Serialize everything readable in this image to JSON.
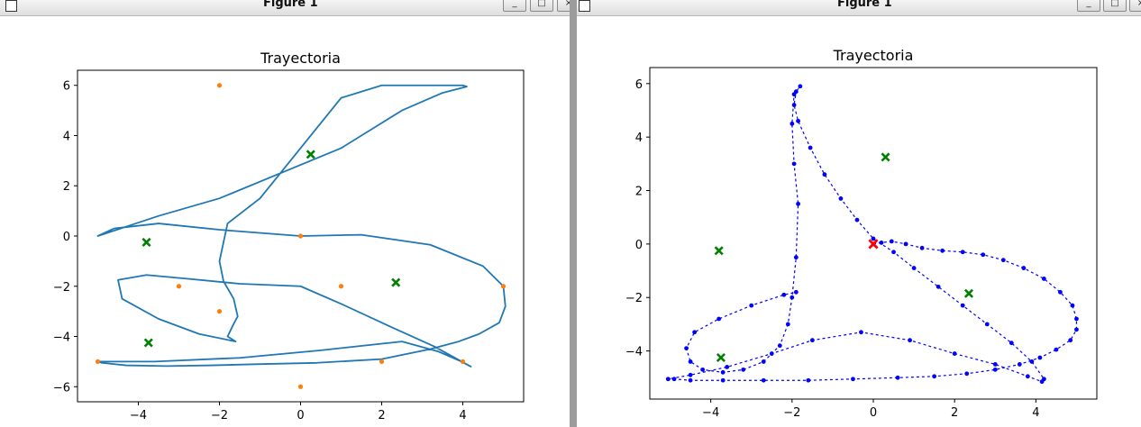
{
  "windows": [
    {
      "title": "Figure 1",
      "buttons": {
        "minimize": "_",
        "maximize": "□",
        "close": "×"
      }
    },
    {
      "title": "Figure 1",
      "buttons": {
        "minimize": "_",
        "maximize": "□",
        "close": "×"
      }
    }
  ],
  "chart_data": [
    {
      "type": "line",
      "title": "Trayectoria",
      "xlabel": "",
      "ylabel": "",
      "xlim": [
        -5.5,
        5.5
      ],
      "ylim": [
        -6.6,
        6.6
      ],
      "xticks": [
        -4,
        -2,
        0,
        2,
        4
      ],
      "yticks": [
        -6,
        -4,
        -2,
        0,
        2,
        4,
        6
      ],
      "grid": false,
      "colors": {
        "path": "#1f77b4",
        "waypoints": "#ff7f0e",
        "obstacles": "#008000"
      },
      "series": [
        {
          "marker": "line",
          "x": [
            0,
            1.5,
            3.2,
            4.5,
            5.0,
            5.05,
            4.9,
            4.4,
            3.9,
            3.2,
            2.0,
            0.4,
            -1.0,
            -2.2,
            -3.3,
            -4.3,
            -4.9,
            -5.0,
            -3.6,
            -1.5,
            0.5,
            2.5,
            3.4,
            3.9,
            4.2,
            3.3,
            2.2,
            1.0,
            0,
            -1.5,
            -2.8,
            -3.8,
            -4.5,
            -4.4,
            -3.5,
            -2.5,
            -1.6,
            -1.8,
            -1.65,
            -1.55,
            -1.65,
            -1.9,
            -2.0,
            -1.8,
            -1.0,
            0.0,
            1.0,
            2.0,
            3.0,
            4.0,
            4.1,
            3.5,
            2.5,
            1.0,
            -0.5,
            -2.0,
            -3.5,
            -5.0,
            -4.6,
            -3.5,
            -2.0,
            -0.8,
            0.0
          ],
          "y": [
            0,
            0.05,
            -0.35,
            -1.2,
            -2.0,
            -2.8,
            -3.45,
            -3.9,
            -4.2,
            -4.5,
            -4.9,
            -5.05,
            -5.1,
            -5.15,
            -5.18,
            -5.15,
            -5.05,
            -5.0,
            -5.0,
            -4.85,
            -4.55,
            -4.2,
            -4.6,
            -4.95,
            -5.2,
            -4.4,
            -3.6,
            -2.7,
            -2.0,
            -1.9,
            -1.7,
            -1.55,
            -1.75,
            -2.5,
            -3.3,
            -3.9,
            -4.2,
            -4.0,
            -3.5,
            -3.2,
            -2.5,
            -1.8,
            -1.0,
            0.5,
            1.5,
            3.5,
            5.5,
            6.0,
            6.0,
            6.0,
            5.95,
            5.7,
            5.0,
            3.5,
            2.5,
            1.5,
            0.8,
            0.0,
            0.3,
            0.5,
            0.25,
            0.1,
            0.0
          ]
        },
        {
          "marker": "dot",
          "x": [
            -2,
            0,
            1,
            5,
            -3,
            -2,
            -5,
            2,
            4,
            0
          ],
          "y": [
            6,
            0,
            -2,
            -2,
            -2,
            -3,
            -5,
            -5,
            -5,
            -6
          ]
        },
        {
          "marker": "x",
          "x": [
            0.25,
            -3.8,
            2.35,
            -3.75
          ],
          "y": [
            3.25,
            -0.25,
            -1.85,
            -4.25
          ]
        }
      ]
    },
    {
      "type": "scatter",
      "title": "Trayectoria",
      "xlabel": "",
      "ylabel": "",
      "xlim": [
        -5.5,
        5.5
      ],
      "ylim": [
        -5.8,
        6.6
      ],
      "xticks": [
        -4,
        -2,
        0,
        2,
        4
      ],
      "yticks": [
        -4,
        -2,
        0,
        2,
        4,
        6
      ],
      "grid": false,
      "colors": {
        "path": "#0000ff",
        "start": "#ff0000",
        "obstacles": "#008000"
      },
      "series": [
        {
          "marker": "dot",
          "x": [
            0,
            0.2,
            0.45,
            0.8,
            1.2,
            1.7,
            2.2,
            2.7,
            3.2,
            3.7,
            4.2,
            4.6,
            4.9,
            5.0,
            5.0,
            4.85,
            4.5,
            4.1,
            3.6,
            3.0,
            2.3,
            1.5,
            0.6,
            -0.5,
            -1.6,
            -2.7,
            -3.7,
            -4.5,
            -4.9,
            -5.05,
            -4.5,
            -3.6,
            -2.5,
            -1.5,
            -0.3,
            0.9,
            2.0,
            3.0,
            3.8,
            4.15,
            4.2,
            3.9,
            3.4,
            2.8,
            2.2,
            1.6,
            1.0,
            0.5,
            0,
            -0.4,
            -0.8,
            -1.2,
            -1.55,
            -1.85,
            -1.95,
            -1.9,
            -1.8,
            -1.95,
            -2.0,
            -1.95,
            -1.85,
            -1.9,
            -2.0,
            -2.1,
            -2.3,
            -2.7,
            -3.2,
            -3.7,
            -4.2,
            -4.5,
            -4.6,
            -4.4,
            -3.8,
            -3.0,
            -2.2,
            -1.9
          ],
          "y": [
            0,
            0.05,
            0.1,
            0.0,
            -0.15,
            -0.25,
            -0.3,
            -0.4,
            -0.6,
            -0.9,
            -1.3,
            -1.8,
            -2.3,
            -2.8,
            -3.2,
            -3.6,
            -3.95,
            -4.25,
            -4.5,
            -4.7,
            -4.85,
            -4.95,
            -5.0,
            -5.05,
            -5.1,
            -5.1,
            -5.1,
            -5.1,
            -5.05,
            -5.05,
            -4.9,
            -4.6,
            -4.1,
            -3.6,
            -3.3,
            -3.6,
            -4.1,
            -4.5,
            -4.95,
            -5.15,
            -5.05,
            -4.4,
            -3.7,
            -3.0,
            -2.3,
            -1.6,
            -0.9,
            -0.3,
            0.2,
            0.9,
            1.7,
            2.6,
            3.6,
            4.6,
            5.2,
            5.7,
            5.9,
            5.6,
            4.5,
            3.0,
            1.5,
            -0.5,
            -2.0,
            -3.0,
            -3.8,
            -4.4,
            -4.7,
            -4.8,
            -4.7,
            -4.4,
            -3.9,
            -3.3,
            -2.8,
            -2.3,
            -1.9,
            -1.8
          ]
        },
        {
          "marker": "x",
          "x": [
            0
          ],
          "y": [
            0
          ]
        },
        {
          "marker": "x",
          "x": [
            0.3,
            -3.8,
            2.35,
            -3.75
          ],
          "y": [
            3.25,
            -0.25,
            -1.85,
            -4.25
          ]
        }
      ]
    }
  ]
}
